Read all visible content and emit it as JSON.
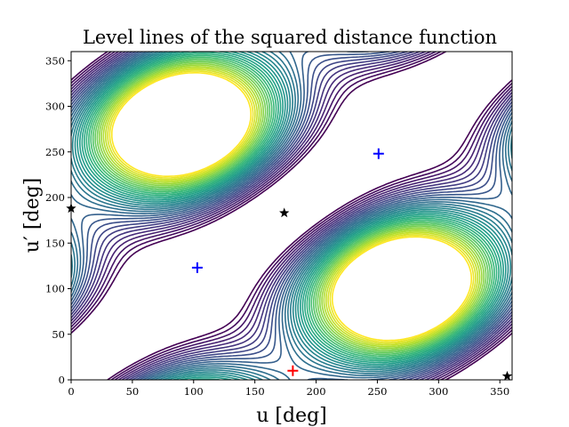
{
  "chart_data": {
    "type": "contour",
    "title": "Level lines of the squared distance function",
    "xlabel": "u [deg]",
    "ylabel": "u′ [deg]",
    "xlim": [
      0,
      360
    ],
    "ylim": [
      0,
      360
    ],
    "xticks": [
      "0",
      "50",
      "100",
      "150",
      "200",
      "250",
      "300",
      "350"
    ],
    "yticks": [
      "0",
      "50",
      "100",
      "150",
      "200",
      "250",
      "300",
      "350"
    ],
    "colormap": "viridis",
    "grid": false,
    "contours": {
      "min_level": 0.35,
      "max_level": 2.05,
      "level_count": 34
    },
    "markers": [
      {
        "symbol": "+",
        "color": "#0000ff",
        "x": 103,
        "y": 123
      },
      {
        "symbol": "+",
        "color": "#0000ff",
        "x": 251,
        "y": 248
      },
      {
        "symbol": "+",
        "color": "#ff0000",
        "x": 181,
        "y": 10
      },
      {
        "symbol": "★",
        "color": "#000000",
        "x": 174,
        "y": 183
      },
      {
        "symbol": "★",
        "color": "#000000",
        "x": 0,
        "y": 188
      },
      {
        "symbol": "★",
        "color": "#000000",
        "x": 356,
        "y": 4
      }
    ]
  }
}
